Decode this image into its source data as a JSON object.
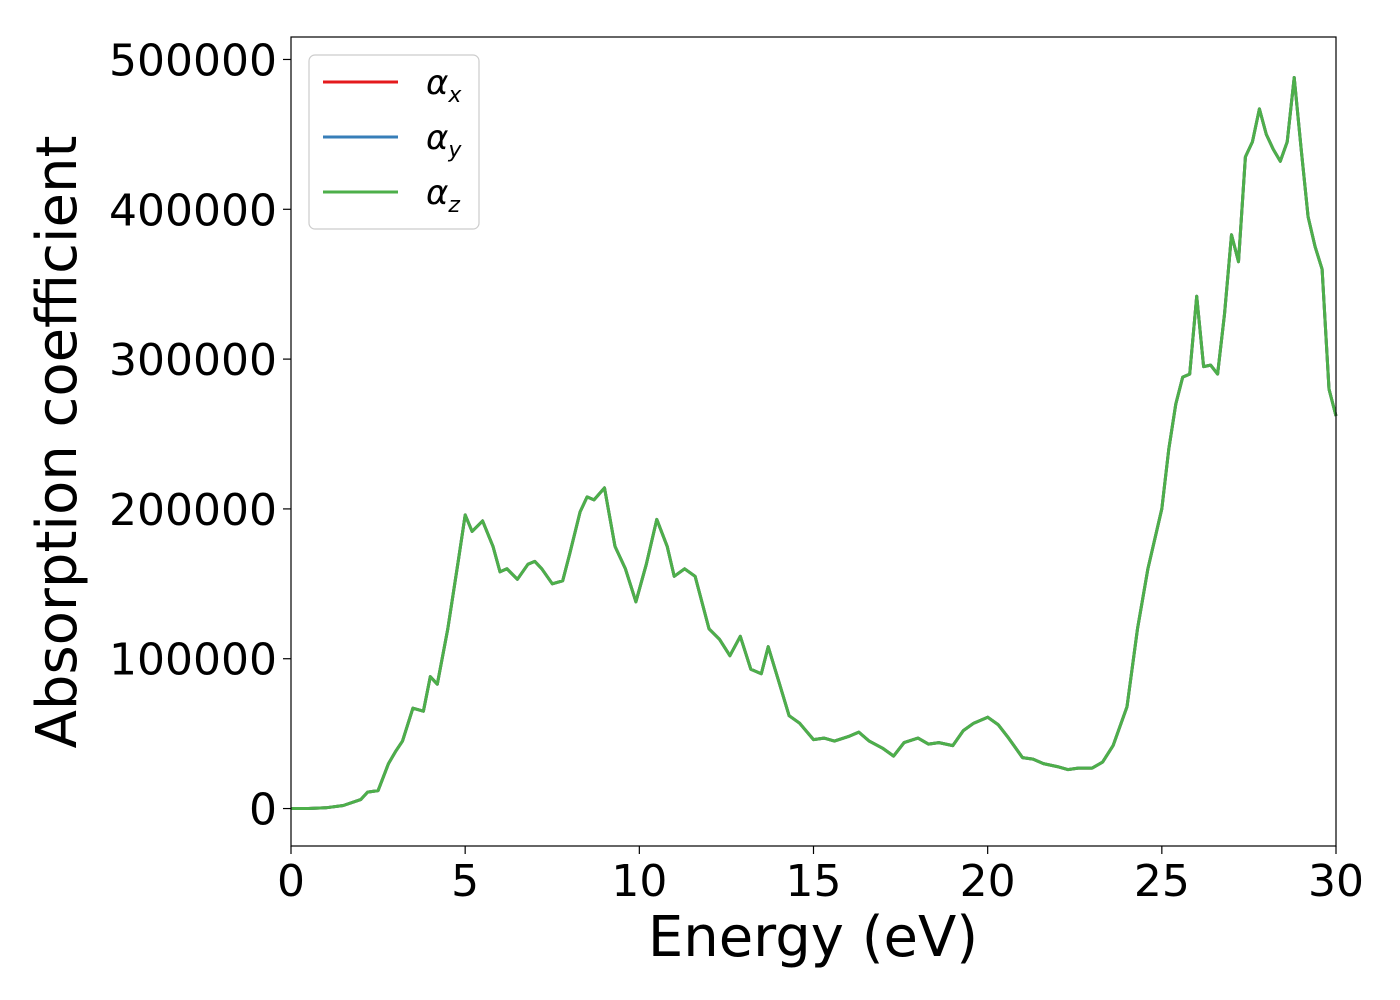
{
  "chart_data": {
    "type": "line",
    "xlabel": "Energy (eV)",
    "ylabel": "Absorption coefficient",
    "xlim": [
      0,
      30
    ],
    "ylim": [
      -25000,
      515000
    ],
    "x_ticks": [
      "0",
      "5",
      "10",
      "15",
      "20",
      "25",
      "30"
    ],
    "y_ticks": [
      "0",
      "100000",
      "200000",
      "300000",
      "400000",
      "500000"
    ],
    "legend_position": "top-left",
    "grid": false,
    "x": [
      0,
      0.5,
      1,
      1.5,
      2,
      2.2,
      2.5,
      2.8,
      3,
      3.2,
      3.5,
      3.8,
      4,
      4.2,
      4.5,
      4.8,
      5,
      5.2,
      5.5,
      5.8,
      6,
      6.2,
      6.5,
      6.8,
      7,
      7.2,
      7.5,
      7.8,
      8,
      8.3,
      8.5,
      8.7,
      9,
      9.3,
      9.6,
      9.9,
      10.2,
      10.5,
      10.8,
      11,
      11.3,
      11.6,
      12,
      12.3,
      12.6,
      12.9,
      13.2,
      13.5,
      13.7,
      14,
      14.3,
      14.6,
      15,
      15.3,
      15.6,
      16,
      16.3,
      16.6,
      17,
      17.3,
      17.6,
      18,
      18.3,
      18.6,
      19,
      19.3,
      19.6,
      20,
      20.3,
      20.6,
      21,
      21.3,
      21.6,
      22,
      22.3,
      22.6,
      23,
      23.3,
      23.6,
      24,
      24.3,
      24.6,
      25,
      25.2,
      25.4,
      25.6,
      25.8,
      26,
      26.2,
      26.4,
      26.6,
      26.8,
      27,
      27.2,
      27.4,
      27.6,
      27.8,
      28,
      28.2,
      28.4,
      28.6,
      28.8,
      29,
      29.2,
      29.4,
      29.6,
      29.8,
      30
    ],
    "series": [
      {
        "name": "α",
        "subscript": "x",
        "color": "#e41a1c",
        "values": [
          0,
          0,
          500,
          2000,
          6000,
          11000,
          12000,
          30000,
          38000,
          45000,
          67000,
          65000,
          88000,
          83000,
          120000,
          165000,
          196000,
          185000,
          192000,
          175000,
          158000,
          160000,
          153000,
          163000,
          165000,
          160000,
          150000,
          152000,
          170000,
          198000,
          208000,
          206000,
          214000,
          175000,
          160000,
          138000,
          163000,
          193000,
          175000,
          155000,
          160000,
          155000,
          120000,
          113000,
          102000,
          115000,
          93000,
          90000,
          108000,
          85000,
          62000,
          57000,
          46000,
          47000,
          45000,
          48000,
          51000,
          45000,
          40000,
          35000,
          44000,
          47000,
          43000,
          44000,
          42000,
          52000,
          57000,
          61000,
          56000,
          47000,
          34000,
          33000,
          30000,
          28000,
          26000,
          27000,
          27000,
          31000,
          42000,
          68000,
          120000,
          160000,
          200000,
          240000,
          270000,
          288000,
          290000,
          342000,
          295000,
          296000,
          290000,
          330000,
          383000,
          365000,
          435000,
          445000,
          467000,
          450000,
          440000,
          432000,
          445000,
          488000,
          440000,
          395000,
          375000,
          360000,
          280000,
          262000
        ]
      },
      {
        "name": "α",
        "subscript": "y",
        "color": "#377eb8",
        "values": [
          0,
          0,
          500,
          2000,
          6000,
          11000,
          12000,
          30000,
          38000,
          45000,
          67000,
          65000,
          88000,
          83000,
          120000,
          165000,
          196000,
          185000,
          192000,
          175000,
          158000,
          160000,
          153000,
          163000,
          165000,
          160000,
          150000,
          152000,
          170000,
          198000,
          208000,
          206000,
          214000,
          175000,
          160000,
          138000,
          163000,
          193000,
          175000,
          155000,
          160000,
          155000,
          120000,
          113000,
          102000,
          115000,
          93000,
          90000,
          108000,
          85000,
          62000,
          57000,
          46000,
          47000,
          45000,
          48000,
          51000,
          45000,
          40000,
          35000,
          44000,
          47000,
          43000,
          44000,
          42000,
          52000,
          57000,
          61000,
          56000,
          47000,
          34000,
          33000,
          30000,
          28000,
          26000,
          27000,
          27000,
          31000,
          42000,
          68000,
          120000,
          160000,
          200000,
          240000,
          270000,
          288000,
          290000,
          342000,
          295000,
          296000,
          290000,
          330000,
          383000,
          365000,
          435000,
          445000,
          467000,
          450000,
          440000,
          432000,
          445000,
          488000,
          440000,
          395000,
          375000,
          360000,
          280000,
          262000
        ]
      },
      {
        "name": "α",
        "subscript": "z",
        "color": "#4daf4a",
        "values": [
          0,
          0,
          500,
          2000,
          6000,
          11000,
          12000,
          30000,
          38000,
          45000,
          67000,
          65000,
          88000,
          83000,
          120000,
          165000,
          196000,
          185000,
          192000,
          175000,
          158000,
          160000,
          153000,
          163000,
          165000,
          160000,
          150000,
          152000,
          170000,
          198000,
          208000,
          206000,
          214000,
          175000,
          160000,
          138000,
          163000,
          193000,
          175000,
          155000,
          160000,
          155000,
          120000,
          113000,
          102000,
          115000,
          93000,
          90000,
          108000,
          85000,
          62000,
          57000,
          46000,
          47000,
          45000,
          48000,
          51000,
          45000,
          40000,
          35000,
          44000,
          47000,
          43000,
          44000,
          42000,
          52000,
          57000,
          61000,
          56000,
          47000,
          34000,
          33000,
          30000,
          28000,
          26000,
          27000,
          27000,
          31000,
          42000,
          68000,
          120000,
          160000,
          200000,
          240000,
          270000,
          288000,
          290000,
          342000,
          295000,
          296000,
          290000,
          330000,
          383000,
          365000,
          435000,
          445000,
          467000,
          450000,
          440000,
          432000,
          445000,
          488000,
          440000,
          395000,
          375000,
          360000,
          280000,
          262000
        ]
      }
    ]
  }
}
